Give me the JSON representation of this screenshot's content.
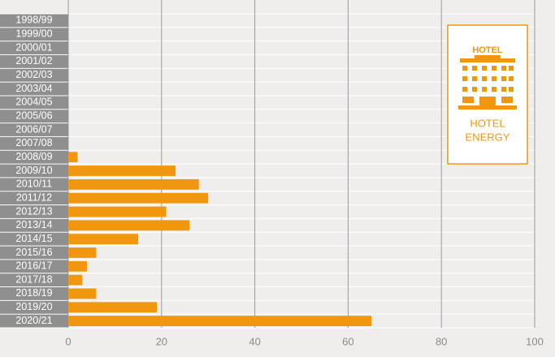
{
  "chart_data": {
    "type": "barh",
    "categories": [
      "1998/99",
      "1999/00",
      "2000/01",
      "2001/02",
      "2002/03",
      "2003/04",
      "2004/05",
      "2005/06",
      "2006/07",
      "2007/08",
      "2008/09",
      "2009/10",
      "2010/11",
      "2011/12",
      "2012/13",
      "2013/14",
      "2014/15",
      "2015/16",
      "2016/17",
      "2017/18",
      "2018/19",
      "2019/20",
      "2020/21"
    ],
    "values": [
      0,
      0,
      0,
      0,
      0,
      0,
      0,
      0,
      0,
      0,
      2,
      23,
      28,
      30,
      21,
      26,
      15,
      6,
      4,
      3,
      6,
      19,
      65
    ],
    "color": "#f0960f",
    "xlim": [
      0,
      100
    ],
    "xticks": [
      0,
      20,
      40,
      60,
      80,
      100
    ],
    "grid": true,
    "badge": {
      "icon_label": "HOTEL",
      "lines": [
        "HOTEL",
        "ENERGY"
      ]
    }
  }
}
